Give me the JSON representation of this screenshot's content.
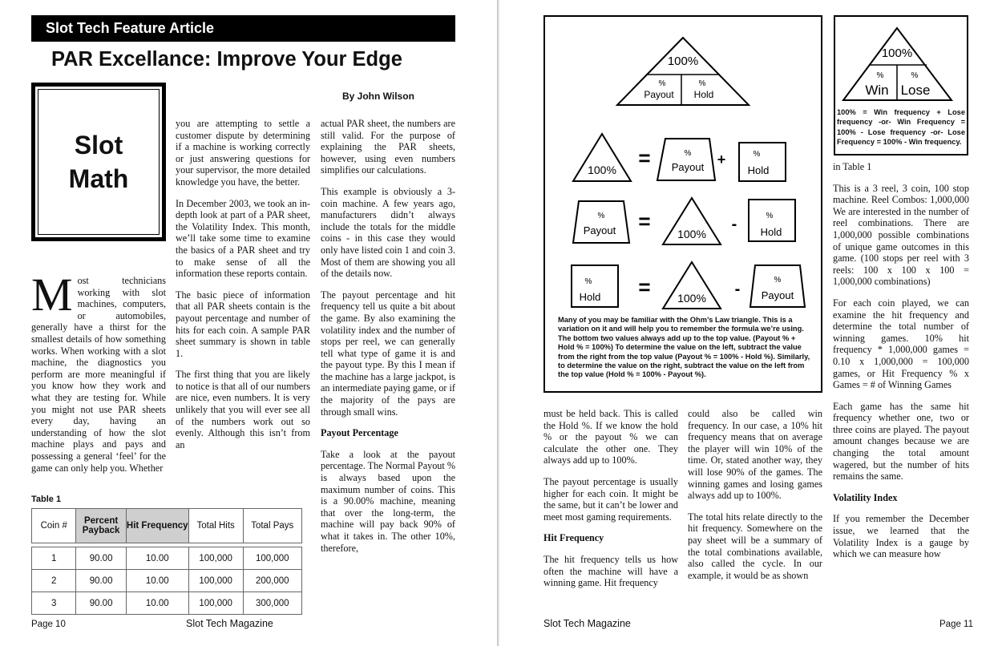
{
  "left_page": {
    "banner": "Slot Tech Feature Article",
    "title": "PAR Excellance: Improve Your Edge",
    "byline": "By John Wilson",
    "sidebar_box": {
      "line1": "Slot",
      "line2": "Math"
    },
    "col1": {
      "dropcap": "M",
      "text": "ost technicians working with slot machines, computers, or automobiles, generally have a thirst for the smallest details of how something works. When working with a slot machine, the diagnostics you perform are more meaningful if you know how they work and what they are testing for. While you might not use PAR sheets every day, having an understanding of how the slot machine plays and pays and possessing a general ‘feel’ for the game can only help you. Whether"
    },
    "col2": [
      "you are attempting to settle a customer dispute by determining if a machine is working correctly or just answering questions for your supervisor, the more detailed knowledge you have, the better.",
      "In December 2003, we took an in-depth look at part of a PAR sheet, the Volatility Index. This month, we’ll take some time to examine the basics of a PAR sheet and try to make sense of all the information these reports contain.",
      "The basic piece of information that all PAR sheets contain is the payout percentage and number of hits for each coin. A sample PAR sheet summary is shown in table 1.",
      "The first thing that you are likely to notice is that all of our numbers are nice, even numbers. It is very unlikely that you will ever see all of the numbers work out so evenly. Although this isn’t from an"
    ],
    "col3": {
      "p1": "actual PAR sheet, the numbers are still valid. For the purpose of explaining the PAR sheets, however, using even numbers simplifies our calculations.",
      "p2": "This example is obviously a 3-coin machine. A few years ago, manufacturers didn’t always include the totals for the middle coins - in this case they would only have listed coin 1 and coin 3. Most of them are showing you all of the details now.",
      "p3": "The payout percentage and hit frequency tell us quite a bit about the game. By also examining the volatility index and the number of stops per reel, we can generally tell what type of game it is and the payout type. By this I mean if the machine has a large jackpot, is an intermediate paying game, or if the majority of the pays are through small wins.",
      "heading": "Payout Percentage",
      "p4": "Take a look at the payout percentage. The Normal Payout % is always based upon the maximum number of coins. This is a 90.00% machine, meaning that over the long-term, the machine will pay back 90% of what it takes in. The other 10%, therefore,"
    },
    "table": {
      "label": "Table 1",
      "headers": [
        "Coin #",
        "Percent Payback",
        "Hit Frequency",
        "Total Hits",
        "Total Pays"
      ],
      "rows": [
        [
          "1",
          "90.00",
          "10.00",
          "100,000",
          "100,000"
        ],
        [
          "2",
          "90.00",
          "10.00",
          "100,000",
          "200,000"
        ],
        [
          "3",
          "90.00",
          "10.00",
          "100,000",
          "300,000"
        ]
      ]
    },
    "footer": {
      "page": "Page 10",
      "magazine": "Slot Tech Magazine"
    }
  },
  "right_page": {
    "diagram": {
      "top_label": "100%",
      "payout_label": "Payout",
      "hold_label": "Hold",
      "percent": "%",
      "eq_sign": "=",
      "plus_sign": "+",
      "minus_sign": "-",
      "caption": "Many of you may be familiar with the Ohm’s Law triangle. This is a variation on it and will help you to remember the formula we’re using. The bottom two values always add up to the top value. (Payout % + Hold % = 100%) To determine the value on the left, subtract the value from the right from the top value (Payout % = 100% - Hold %). Similarly, to determine the value on the right, subtract the value on the left from the top value (Hold % = 100% - Payout %)."
    },
    "small_diagram": {
      "top_label": "100%",
      "win_label": "Win",
      "lose_label": "Lose",
      "percent": "%",
      "caption": "100% = Win frequency + Lose frequency -or- Win Frequency = 100% - Lose frequency -or- Lose Frequency = 100% - Win frequency."
    },
    "col1": {
      "p1": "must be held back. This is called the Hold %. If we know the hold % or the payout % we can calculate the other one. They always add up to 100%.",
      "p2": "The payout percentage is usually higher for each coin. It might be the same, but it can’t be lower and meet most gaming requirements.",
      "heading": "Hit Frequency",
      "p3": "The hit frequency tells us how often the machine will have a winning game. Hit frequency"
    },
    "col2": {
      "p1": "could also be called win frequency. In our case, a 10% hit frequency means that on average the player will win 10% of the time. Or, stated another way, they will lose 90% of the games. The winning games and losing games always add up to 100%.",
      "p2": "The total hits relate directly to the hit frequency. Somewhere on the pay sheet will be a summary of the total combinations available, also called the cycle. In our example, it would be as shown"
    },
    "col3": {
      "p0": "in Table 1",
      "p1": "This is a 3 reel, 3 coin, 100 stop machine. Reel Combos: 1,000,000 We are interested in the number of reel combinations. There are 1,000,000 possible combinations of unique game outcomes in this game. (100 stops per reel with 3 reels: 100 x 100 x 100 = 1,000,000 combinations)",
      "p2": "For each coin played, we can examine the hit frequency and determine the total number of winning games. 10% hit frequency * 1,000,000 games = 0.10 x 1,000,000 = 100,000 games, or Hit Frequency % x Games = # of Winning Games",
      "p3": "Each game has the same hit frequency whether one, two or three coins are played. The payout amount changes because we are changing the total amount wagered, but the number of hits remains the same.",
      "heading": "Volatility Index",
      "p4": "If you remember the December issue, we learned that the Volatility Index is a gauge by which we can measure how"
    },
    "footer": {
      "magazine": "Slot Tech Magazine",
      "page": "Page 11"
    }
  }
}
